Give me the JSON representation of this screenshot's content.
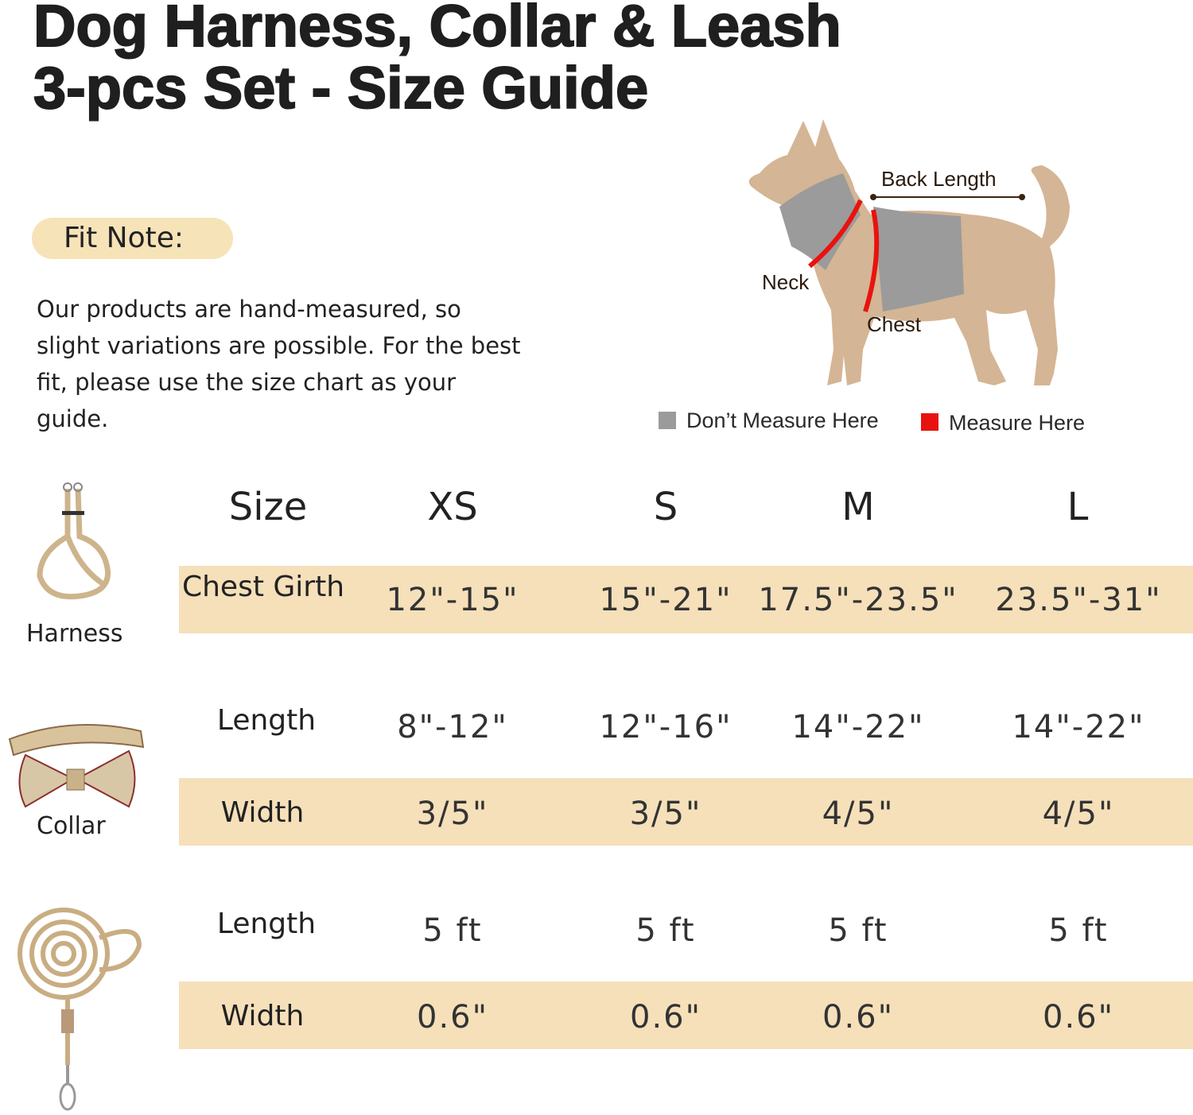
{
  "title": {
    "line1": "Dog Harness, Collar & Leash",
    "line2": "3-pcs Set - Size Guide"
  },
  "fit_note": {
    "label": "Fit Note:",
    "text": "Our products are hand-measured, so slight variations are possible. For the best fit, please use the size chart as your guide."
  },
  "diagram": {
    "back_length": "Back Length",
    "neck": "Neck",
    "chest": "Chest",
    "legend": [
      {
        "label": "Don’t Measure Here",
        "color": "#9b9b9b"
      },
      {
        "label": "Measure Here",
        "color": "#e8130f"
      }
    ]
  },
  "colors": {
    "band": "#f5e0ba",
    "pill": "#f6e3b8",
    "dog": "#d4b595"
  },
  "table": {
    "header": [
      "Size",
      "XS",
      "S",
      "M",
      "L"
    ],
    "products": [
      {
        "name": "Harness",
        "icon": "harness-icon",
        "rows": [
          {
            "label": "Chest Girth",
            "values": [
              "12\"-15\"",
              "15\"-21\"",
              "17.5\"-23.5\"",
              "23.5\"-31\""
            ],
            "banded": true
          }
        ]
      },
      {
        "name": "Collar",
        "icon": "collar-icon",
        "rows": [
          {
            "label": "Length",
            "values": [
              "8\"-12\"",
              "12\"-16\"",
              "14\"-22\"",
              "14\"-22\""
            ],
            "banded": false
          },
          {
            "label": "Width",
            "values": [
              "3/5\"",
              "3/5\"",
              "4/5\"",
              "4/5\""
            ],
            "banded": true
          }
        ]
      },
      {
        "name": "",
        "icon": "leash-icon",
        "rows": [
          {
            "label": "Length",
            "values": [
              "5 ft",
              "5 ft",
              "5 ft",
              "5 ft"
            ],
            "banded": false
          },
          {
            "label": "Width",
            "values": [
              "0.6\"",
              "0.6\"",
              "0.6\"",
              "0.6\""
            ],
            "banded": true
          }
        ]
      }
    ]
  }
}
